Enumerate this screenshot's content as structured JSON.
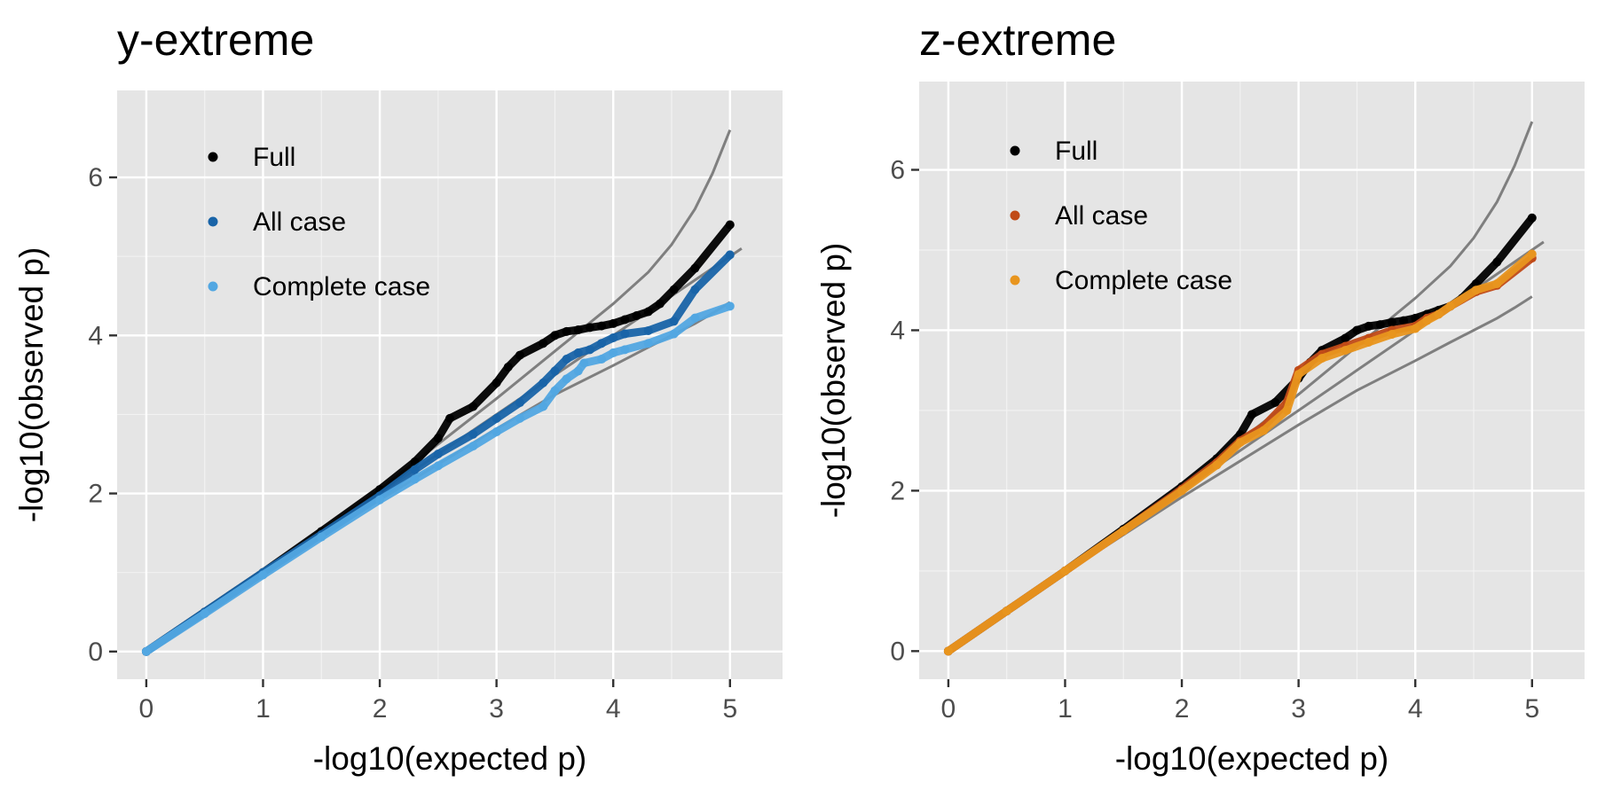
{
  "chart_data": [
    {
      "type": "scatter",
      "title": "y-extreme",
      "xlabel": "-log10(expected p)",
      "ylabel": "-log10(observed p)",
      "xlim": [
        -0.25,
        5.45
      ],
      "ylim": [
        -0.35,
        7.1
      ],
      "xticks": [
        0,
        1,
        2,
        3,
        4,
        5
      ],
      "yticks": [
        0,
        2,
        4,
        6
      ],
      "xtick_labels": [
        "0",
        "1",
        "2",
        "3",
        "4",
        "5"
      ],
      "ytick_labels": [
        "0",
        "2",
        "4",
        "6"
      ],
      "grid": true,
      "legend_position": "top-left inside",
      "series": [
        {
          "name": "Full",
          "color": "#000000",
          "x": [
            0,
            0.5,
            1.0,
            1.5,
            2.0,
            2.3,
            2.5,
            2.6,
            2.8,
            3.0,
            3.1,
            3.2,
            3.4,
            3.5,
            3.6,
            3.7,
            3.8,
            3.9,
            4.0,
            4.1,
            4.2,
            4.3,
            4.4,
            4.52,
            4.7,
            5.0
          ],
          "y": [
            0,
            0.5,
            1.0,
            1.52,
            2.05,
            2.4,
            2.7,
            2.95,
            3.1,
            3.4,
            3.6,
            3.75,
            3.9,
            4.0,
            4.05,
            4.07,
            4.1,
            4.12,
            4.15,
            4.2,
            4.25,
            4.3,
            4.4,
            4.58,
            4.85,
            5.4
          ]
        },
        {
          "name": "All case",
          "color": "#1964a8",
          "x": [
            0,
            0.5,
            1.0,
            1.5,
            2.0,
            2.3,
            2.5,
            2.8,
            3.0,
            3.2,
            3.4,
            3.5,
            3.6,
            3.7,
            3.8,
            3.9,
            4.0,
            4.1,
            4.3,
            4.52,
            4.7,
            5.0
          ],
          "y": [
            0,
            0.5,
            1.0,
            1.48,
            1.97,
            2.3,
            2.5,
            2.75,
            2.95,
            3.15,
            3.4,
            3.55,
            3.7,
            3.78,
            3.82,
            3.9,
            3.97,
            4.02,
            4.06,
            4.18,
            4.58,
            5.02
          ]
        },
        {
          "name": "Complete case",
          "color": "#52a7e2",
          "x": [
            0,
            0.5,
            1.0,
            1.5,
            2.0,
            2.3,
            2.5,
            2.8,
            3.0,
            3.2,
            3.4,
            3.5,
            3.6,
            3.7,
            3.75,
            3.9,
            4.0,
            4.1,
            4.3,
            4.52,
            4.7,
            5.0
          ],
          "y": [
            0,
            0.48,
            0.97,
            1.45,
            1.92,
            2.18,
            2.35,
            2.6,
            2.78,
            2.95,
            3.1,
            3.3,
            3.45,
            3.55,
            3.65,
            3.7,
            3.78,
            3.82,
            3.9,
            4.02,
            4.22,
            4.37
          ]
        }
      ],
      "reference_curves": [
        {
          "name": "upper bound",
          "color": "#7f7f7f",
          "x": [
            0,
            1,
            2,
            3,
            3.5,
            4.0,
            4.3,
            4.5,
            4.7,
            4.85,
            5.0
          ],
          "y": [
            0,
            1.0,
            2.05,
            3.2,
            3.8,
            4.4,
            4.8,
            5.15,
            5.6,
            6.05,
            6.6
          ]
        },
        {
          "name": "null diagonal",
          "color": "#7f7f7f",
          "x": [
            0,
            5.1
          ],
          "y": [
            0,
            5.1
          ]
        },
        {
          "name": "lower bound",
          "color": "#7f7f7f",
          "x": [
            0,
            1,
            2,
            3,
            3.5,
            4.0,
            4.3,
            4.5,
            4.7,
            4.85,
            5.0
          ],
          "y": [
            0,
            0.98,
            1.92,
            2.82,
            3.25,
            3.62,
            3.85,
            4.0,
            4.15,
            4.28,
            4.42
          ]
        }
      ]
    },
    {
      "type": "scatter",
      "title": "z-extreme",
      "xlabel": "-log10(expected p)",
      "ylabel": "-log10(observed p)",
      "xlim": [
        -0.25,
        5.45
      ],
      "ylim": [
        -0.35,
        7.1
      ],
      "xticks": [
        0,
        1,
        2,
        3,
        4,
        5
      ],
      "yticks": [
        0,
        2,
        4,
        6
      ],
      "xtick_labels": [
        "0",
        "1",
        "2",
        "3",
        "4",
        "5"
      ],
      "ytick_labels": [
        "0",
        "2",
        "4",
        "6"
      ],
      "grid": true,
      "legend_position": "top-left inside",
      "series": [
        {
          "name": "Full",
          "color": "#000000",
          "x": [
            0,
            0.5,
            1.0,
            1.5,
            2.0,
            2.3,
            2.5,
            2.6,
            2.8,
            3.0,
            3.1,
            3.2,
            3.4,
            3.5,
            3.6,
            3.7,
            3.8,
            3.9,
            4.0,
            4.1,
            4.2,
            4.3,
            4.4,
            4.52,
            4.7,
            5.0
          ],
          "y": [
            0,
            0.5,
            1.0,
            1.52,
            2.05,
            2.4,
            2.7,
            2.95,
            3.1,
            3.4,
            3.6,
            3.75,
            3.9,
            4.0,
            4.05,
            4.07,
            4.1,
            4.12,
            4.15,
            4.2,
            4.25,
            4.3,
            4.4,
            4.58,
            4.85,
            5.4
          ]
        },
        {
          "name": "All case",
          "color": "#c04a17",
          "x": [
            0,
            0.5,
            1.0,
            1.5,
            2.0,
            2.3,
            2.5,
            2.7,
            2.9,
            3.0,
            3.2,
            3.4,
            3.6,
            3.8,
            4.0,
            4.1,
            4.2,
            4.3,
            4.52,
            4.7,
            5.0
          ],
          "y": [
            0,
            0.5,
            1.0,
            1.5,
            2.02,
            2.35,
            2.62,
            2.8,
            3.1,
            3.5,
            3.7,
            3.8,
            3.9,
            4.0,
            4.05,
            4.15,
            4.2,
            4.3,
            4.48,
            4.56,
            4.9
          ]
        },
        {
          "name": "Complete case",
          "color": "#e8951e",
          "x": [
            0,
            0.5,
            1.0,
            1.5,
            2.0,
            2.3,
            2.5,
            2.7,
            2.9,
            3.0,
            3.2,
            3.4,
            3.6,
            3.8,
            4.0,
            4.1,
            4.2,
            4.3,
            4.52,
            4.7,
            5.0
          ],
          "y": [
            0,
            0.5,
            1.0,
            1.5,
            2.0,
            2.32,
            2.6,
            2.75,
            3.0,
            3.45,
            3.65,
            3.75,
            3.85,
            3.95,
            4.02,
            4.12,
            4.2,
            4.3,
            4.5,
            4.58,
            4.95
          ]
        }
      ],
      "reference_curves": [
        {
          "name": "upper bound",
          "color": "#7f7f7f",
          "x": [
            0,
            1,
            2,
            3,
            3.5,
            4.0,
            4.3,
            4.5,
            4.7,
            4.85,
            5.0
          ],
          "y": [
            0,
            1.0,
            2.05,
            3.2,
            3.8,
            4.4,
            4.8,
            5.15,
            5.6,
            6.05,
            6.6
          ]
        },
        {
          "name": "null diagonal",
          "color": "#7f7f7f",
          "x": [
            0,
            5.1
          ],
          "y": [
            0,
            5.1
          ]
        },
        {
          "name": "lower bound",
          "color": "#7f7f7f",
          "x": [
            0,
            1,
            2,
            3,
            3.5,
            4.0,
            4.3,
            4.5,
            4.7,
            4.85,
            5.0
          ],
          "y": [
            0,
            0.98,
            1.92,
            2.82,
            3.25,
            3.62,
            3.85,
            4.0,
            4.15,
            4.28,
            4.42
          ]
        }
      ]
    }
  ]
}
